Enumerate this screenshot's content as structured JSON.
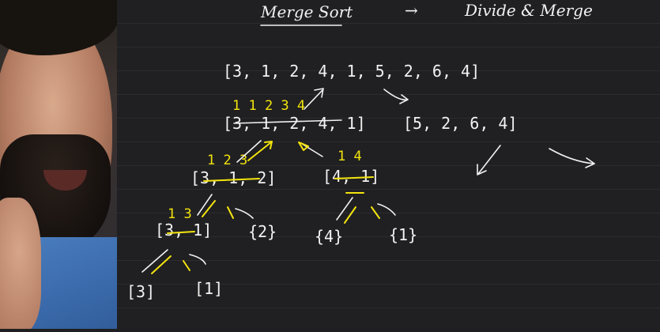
{
  "header": {
    "title": "Merge Sort",
    "arrow": "→",
    "subtitle": "Divide & Merge"
  },
  "array": {
    "root": "[3, 1, 2, 4, 1, 5, 2, 6, 4]",
    "left": "[3, 1, 2, 4, 1]",
    "left_sorted": "1 1 2 3 4",
    "right": "[5, 2, 6, 4]",
    "l1": "[3, 1, 2]",
    "l1_sorted": "1 2 3",
    "l2": "[4, 1]",
    "l2_sorted": "1 4",
    "l1a": "[3, 1]",
    "l1a_sorted": "1 3",
    "l1b": "{2}",
    "l2a": "{4}",
    "l2b": "{1}",
    "l1aa": "[3]",
    "l1ab": "[1]"
  },
  "colors": {
    "board": "#202022",
    "chalk": "#f2f2f2",
    "highlight": "#f4e40e"
  }
}
